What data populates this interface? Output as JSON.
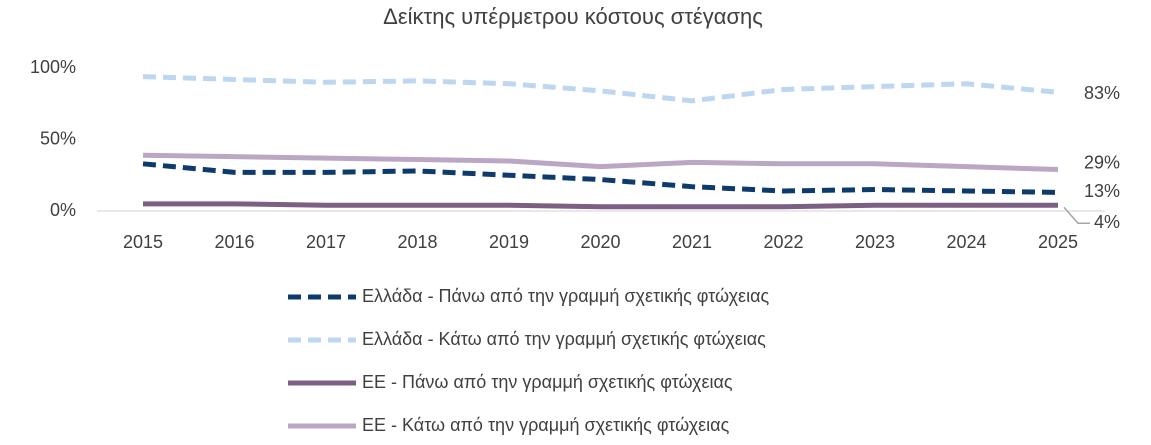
{
  "chart_data": {
    "type": "line",
    "title": "Δείκτης υπέρμετρου κόστους στέγασης",
    "categories": [
      "2015",
      "2016",
      "2017",
      "2018",
      "2019",
      "2020",
      "2021",
      "2022",
      "2023",
      "2024",
      "2025"
    ],
    "ylim": [
      0,
      100
    ],
    "yticks": [
      {
        "value": 0,
        "label": "0%"
      },
      {
        "value": 50,
        "label": "50%"
      },
      {
        "value": 100,
        "label": "100%"
      }
    ],
    "grid": false,
    "legend": "bottom",
    "series": [
      {
        "name": "Ελλάδα - Πάνω από την γραμμή σχετικής φτώχειας",
        "color": "#0e3b6e",
        "dash": true,
        "values": [
          33,
          27,
          27,
          28,
          25,
          22,
          17,
          14,
          15,
          14,
          13
        ],
        "value_labels": [
          null,
          null,
          null,
          null,
          null,
          null,
          null,
          null,
          null,
          null,
          "13%"
        ]
      },
      {
        "name": "Ελλάδα - Κάτω από την γραμμή σχετικής φτώχειας",
        "color": "#bdd7f0",
        "dash": true,
        "values": [
          94,
          92,
          90,
          91,
          89,
          84,
          77,
          85,
          87,
          89,
          83
        ],
        "value_labels": [
          null,
          null,
          null,
          null,
          null,
          null,
          null,
          null,
          null,
          null,
          "83%"
        ]
      },
      {
        "name": "ΕΕ - Πάνω από την γραμμή σχετικής φτώχειας",
        "color": "#7d5f84",
        "dash": false,
        "values": [
          5,
          5,
          4,
          4,
          4,
          3,
          3,
          3,
          4,
          4,
          4
        ],
        "value_labels": [
          null,
          null,
          null,
          null,
          null,
          null,
          null,
          null,
          null,
          null,
          "4%"
        ]
      },
      {
        "name": "ΕΕ - Κάτω από την γραμμή σχετικής φτώχειας",
        "color": "#bba6c4",
        "dash": false,
        "values": [
          39,
          38,
          37,
          36,
          35,
          31,
          34,
          33,
          33,
          31,
          29
        ],
        "value_labels": [
          null,
          null,
          null,
          null,
          null,
          null,
          null,
          null,
          null,
          null,
          "29%"
        ]
      }
    ]
  }
}
